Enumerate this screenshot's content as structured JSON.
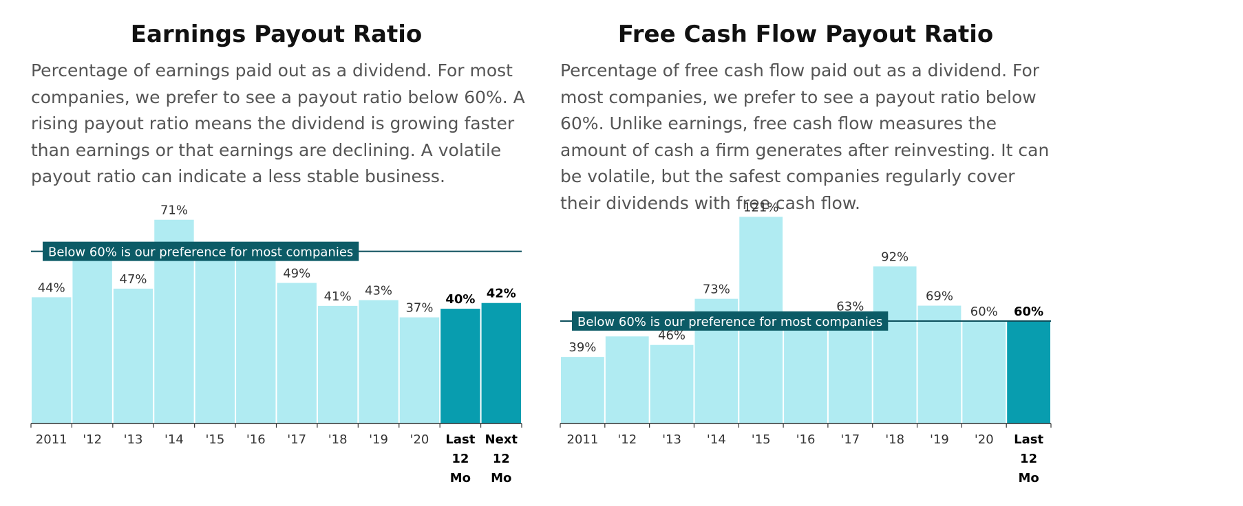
{
  "chart_data": [
    {
      "type": "bar",
      "title": "Earnings Payout Ratio",
      "description": "Percentage of earnings paid out as a dividend. For most companies, we prefer to see a payout ratio below 60%. A rising payout ratio means the dividend is growing faster than earnings or that earnings are declining. A volatile payout ratio can indicate a less stable business.",
      "categories": [
        "2011",
        "'12",
        "'13",
        "'14",
        "'15",
        "'16",
        "'17",
        "'18",
        "'19",
        "'20",
        "Last 12 Mo",
        "Next 12 Mo"
      ],
      "values": [
        44,
        61,
        47,
        71,
        61,
        61,
        49,
        41,
        43,
        37,
        40,
        42
      ],
      "labels": [
        "44%",
        "",
        "47%",
        "71%",
        "",
        "",
        "49%",
        "41%",
        "43%",
        "37%",
        "40%",
        "42%"
      ],
      "highlight": [
        false,
        false,
        false,
        false,
        false,
        false,
        false,
        false,
        false,
        false,
        true,
        true
      ],
      "reference_line": {
        "value": 60,
        "label": "Below 60% is our preference for most companies"
      },
      "ylim": [
        0,
        75
      ],
      "xlabel": "",
      "ylabel": "",
      "grid": false
    },
    {
      "type": "bar",
      "title": "Free Cash Flow Payout Ratio",
      "description": "Percentage of free cash flow paid out as a dividend. For most companies, we prefer to see a payout ratio below 60%. Unlike earnings, free cash flow measures the amount of cash a firm generates after reinvesting. It can be volatile, but the safest companies regularly cover their dividends with free cash flow.",
      "categories": [
        "2011",
        "'12",
        "'13",
        "'14",
        "'15",
        "'16",
        "'17",
        "'18",
        "'19",
        "'20",
        "Last 12 Mo"
      ],
      "values": [
        39,
        51,
        46,
        73,
        121,
        60,
        63,
        92,
        69,
        60,
        60
      ],
      "labels": [
        "39%",
        "",
        "46%",
        "73%",
        "121%",
        "",
        "63%",
        "92%",
        "69%",
        "60%",
        "60%"
      ],
      "highlight": [
        false,
        false,
        false,
        false,
        false,
        false,
        false,
        false,
        false,
        false,
        true
      ],
      "reference_line": {
        "value": 60,
        "label": "Below 60% is our preference for most companies"
      },
      "ylim": [
        0,
        128
      ],
      "xlabel": "",
      "ylabel": "",
      "grid": false
    }
  ],
  "colors": {
    "bar": "#b0ebf2",
    "bar_highlight": "#089daf",
    "reference_line": "#0c4f5c",
    "reference_label_bg": "#0c5b66",
    "reference_label_text": "#ffffff",
    "axis": "#333333",
    "value_label": "#333333",
    "description_text": "#555555"
  }
}
